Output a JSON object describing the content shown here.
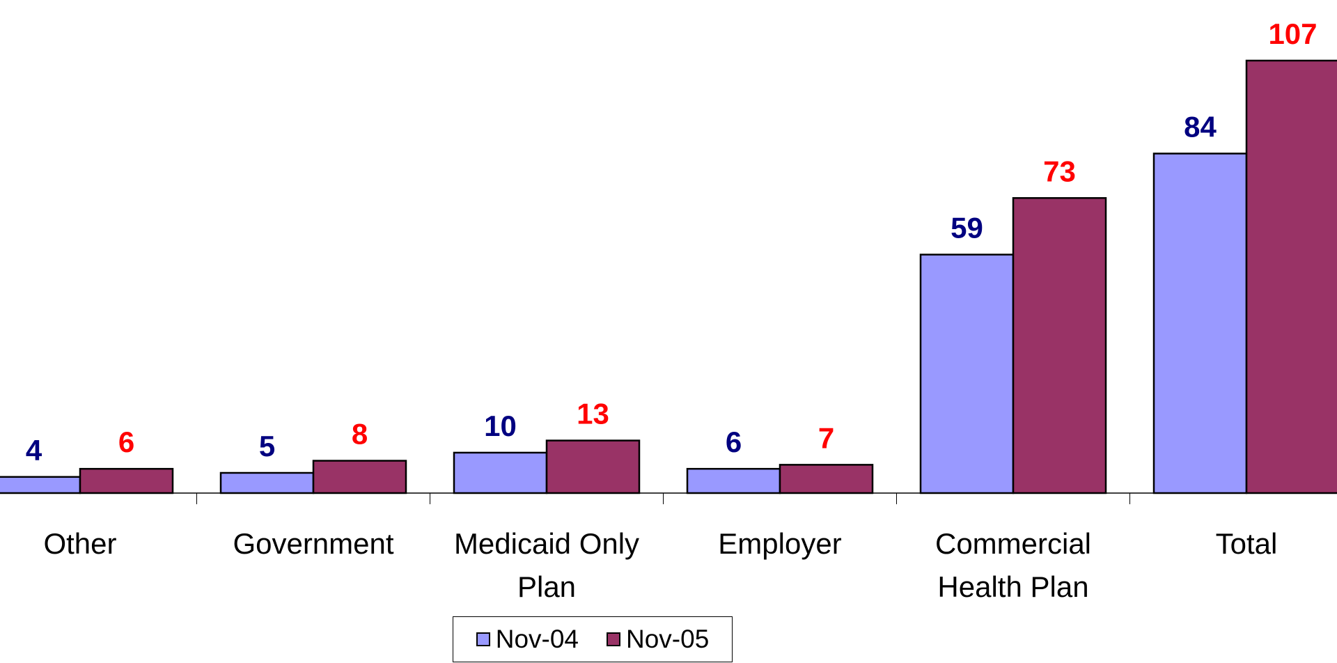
{
  "chart_data": {
    "type": "bar",
    "categories": [
      "Other",
      "Government",
      "Medicaid Only Plan",
      "Employer",
      "Commercial Health Plan",
      "Total"
    ],
    "series": [
      {
        "name": "Nov-04",
        "color": "#9999ff",
        "label_color": "#000080",
        "values": [
          4,
          5,
          10,
          6,
          59,
          84
        ]
      },
      {
        "name": "Nov-05",
        "color": "#993366",
        "label_color": "#ff0000",
        "values": [
          6,
          8,
          13,
          7,
          73,
          107
        ]
      }
    ],
    "legend": "bottom"
  }
}
